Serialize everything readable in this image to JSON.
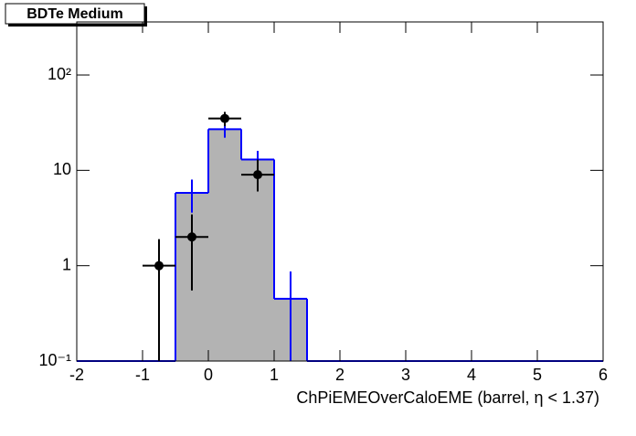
{
  "chart_data": {
    "type": "histogram",
    "title": "BDTe Medium",
    "x_label": "ChPiEMEOverCaloEME (barrel,   η < 1.37)",
    "bins": [
      -2,
      -1.5,
      -1,
      -0.5,
      0,
      0.5,
      1,
      1.5,
      2,
      2.5,
      3,
      3.5,
      4,
      4.5,
      5,
      5.5,
      6
    ],
    "values": [
      0,
      0,
      0,
      5.8,
      27,
      13,
      0.45,
      0,
      0,
      0,
      0,
      0,
      0,
      0,
      0,
      0
    ],
    "errors": [
      0,
      0,
      0,
      2.2,
      5,
      3,
      0.42,
      0,
      0,
      0,
      0,
      0,
      0,
      0,
      0,
      0
    ],
    "color": "#0000ff",
    "fill": "#b3b3b3",
    "points": {
      "x": [
        -0.75,
        -0.25,
        0.25,
        0.75
      ],
      "values": [
        1,
        2,
        35,
        9
      ],
      "errors_low": [
        1,
        1.45,
        6,
        3
      ],
      "errors_high": [
        0.9,
        1.45,
        6,
        4
      ],
      "color": "#000000"
    },
    "xlim": [
      -2,
      6
    ],
    "xticks": [
      -2,
      -1,
      0,
      1,
      2,
      3,
      4,
      5,
      6
    ],
    "ylim": [
      0.1,
      360
    ],
    "log_y": true,
    "yticks": [
      {
        "value": 0.1,
        "label": "10⁻¹"
      },
      1,
      10,
      {
        "value": 100,
        "label": "10²"
      }
    ]
  }
}
